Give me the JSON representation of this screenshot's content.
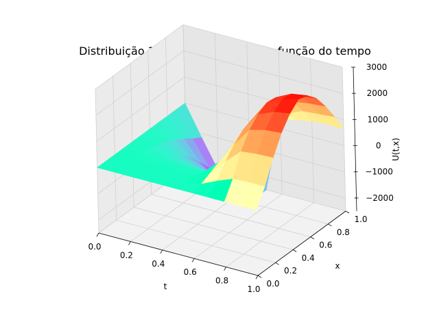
{
  "chart_data": {
    "type": "surface3d",
    "title": "Distribuição 3D da temperatura em função do tempo",
    "xlabel": "t",
    "ylabel": "x",
    "zlabel": "U(t,x)",
    "xlim": [
      0,
      1
    ],
    "ylim": [
      0,
      1
    ],
    "zlim": [
      -2500,
      3000
    ],
    "xticks": [
      "0.0",
      "0.2",
      "0.4",
      "0.6",
      "0.8",
      "1.0"
    ],
    "yticks": [
      "0.0",
      "0.2",
      "0.4",
      "0.6",
      "0.8",
      "1.0"
    ],
    "zticks": [
      "−2000",
      "−1000",
      "0",
      "1000",
      "2000",
      "3000"
    ],
    "colormap": "rainbow",
    "grid": true,
    "surface": {
      "t": [
        0.0,
        0.1,
        0.2,
        0.3,
        0.4,
        0.5,
        0.6,
        0.7,
        0.8,
        0.9,
        1.0
      ],
      "x": [
        0.0,
        0.1,
        0.2,
        0.3,
        0.4,
        0.5,
        0.6,
        0.7,
        0.8,
        0.9,
        1.0
      ],
      "u": [
        [
          0,
          0,
          0,
          0,
          0,
          0,
          0,
          0,
          0,
          0,
          0
        ],
        [
          0,
          0,
          0,
          -40,
          -120,
          -200,
          -330,
          -500,
          -700,
          -950,
          -1150
        ],
        [
          0,
          0,
          0,
          -70,
          -230,
          -420,
          -690,
          -1000,
          -1450,
          -1900,
          -2250
        ],
        [
          0,
          0,
          0,
          -90,
          -310,
          -570,
          -930,
          -1350,
          -1900,
          -2380,
          -2500
        ],
        [
          0,
          0,
          0,
          -100,
          -370,
          -680,
          -1100,
          -1580,
          -2200,
          -2500,
          -2500
        ],
        [
          0,
          0,
          0,
          -100,
          -390,
          -710,
          -1150,
          -1650,
          -2250,
          -2500,
          -2500
        ],
        [
          0,
          100,
          270,
          440,
          590,
          700,
          770,
          790,
          760,
          620,
          380
        ],
        [
          0,
          380,
          880,
          1280,
          1580,
          1720,
          1750,
          1650,
          1380,
          1000,
          500
        ],
        [
          0,
          620,
          1420,
          2000,
          2350,
          2550,
          2500,
          2280,
          1850,
          1250,
          620
        ],
        [
          0,
          650,
          1480,
          2150,
          2600,
          2850,
          2800,
          2480,
          1950,
          1300,
          650
        ],
        [
          0,
          650,
          1500,
          2200,
          2700,
          3000,
          2900,
          2550,
          2000,
          1350,
          650
        ]
      ]
    }
  }
}
